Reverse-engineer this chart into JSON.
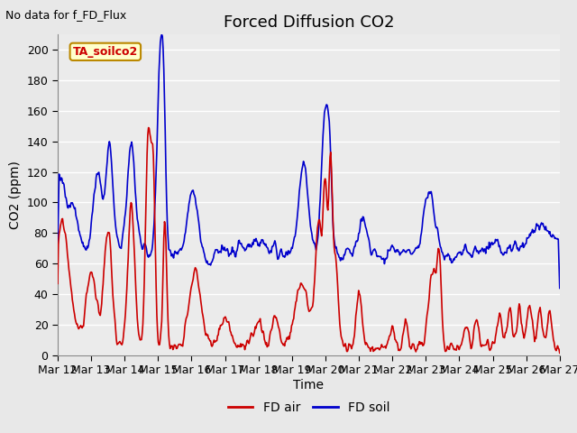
{
  "title": "Forced Diffusion CO2",
  "topleft_text": "No data for f_FD_Flux",
  "ylabel": "CO2 (ppm)",
  "xlabel": "Time",
  "ylim": [
    0,
    210
  ],
  "yticks": [
    0,
    20,
    40,
    60,
    80,
    100,
    120,
    140,
    160,
    180,
    200
  ],
  "bg_color": "#e8e8e8",
  "plot_bg_color": "#ebebeb",
  "grid_color": "#ffffff",
  "red_color": "#cc0000",
  "blue_color": "#0000cc",
  "legend_box_facecolor": "#ffffcc",
  "legend_box_edgecolor": "#bb8800",
  "legend_box_text": "TA_soilco2",
  "legend_box_text_color": "#cc0000",
  "x_tick_labels": [
    "Mar 12",
    "Mar 13",
    "Mar 14",
    "Mar 15",
    "Mar 16",
    "Mar 17",
    "Mar 18",
    "Mar 19",
    "Mar 20",
    "Mar 21",
    "Mar 22",
    "Mar 23",
    "Mar 24",
    "Mar 25",
    "Mar 26",
    "Mar 27"
  ],
  "title_fontsize": 13,
  "axis_label_fontsize": 10,
  "tick_fontsize": 9,
  "topleft_fontsize": 9,
  "legend_fontsize": 10
}
